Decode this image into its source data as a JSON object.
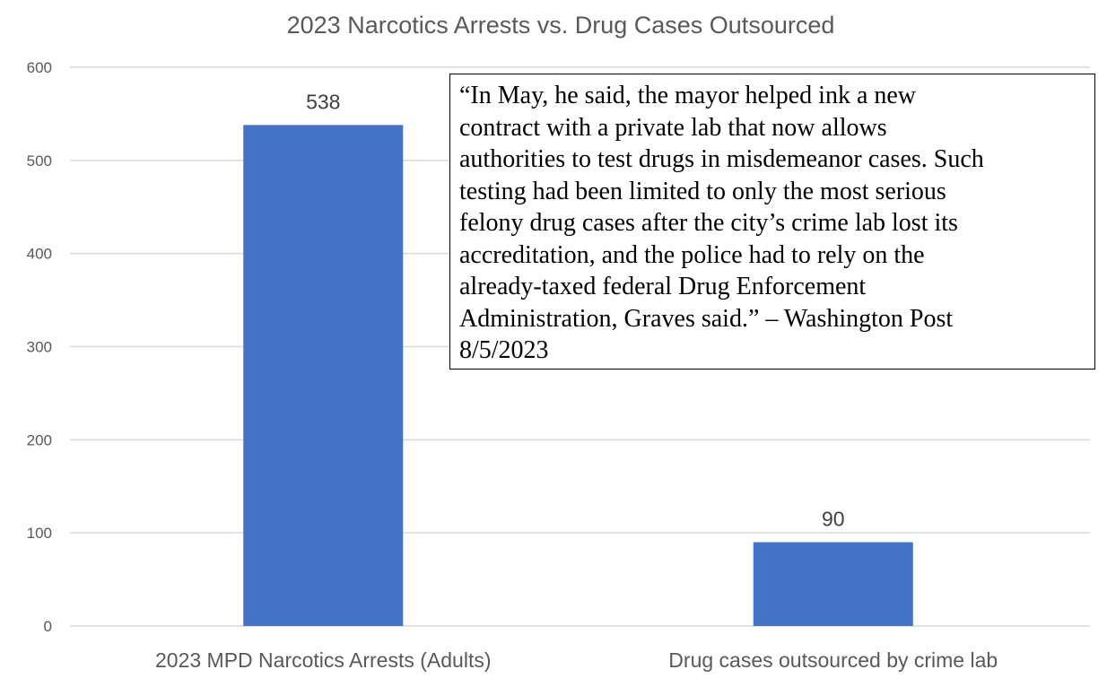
{
  "chart_data": {
    "type": "bar",
    "title": "2023 Narcotics Arrests vs. Drug Cases Outsourced",
    "categories": [
      "2023 MPD Narcotics Arrests (Adults)",
      "Drug cases outsourced by crime lab"
    ],
    "values": [
      538,
      90
    ],
    "data_labels": [
      "538",
      "90"
    ],
    "ylim": [
      0,
      600
    ],
    "yticks": [
      0,
      100,
      200,
      300,
      400,
      500,
      600
    ],
    "ytick_labels": [
      "0",
      "100",
      "200",
      "300",
      "400",
      "500",
      "600"
    ],
    "grid": true,
    "bar_color": "#4472C4",
    "annotation": {
      "lines": [
        "“In May, he said, the mayor helped ink a new",
        "contract with a private lab that now allows",
        "authorities to test drugs in misdemeanor cases. Such",
        "testing had been limited to only the most serious",
        "felony drug cases after the city’s crime lab lost its",
        "accreditation, and the police had to rely on the",
        "already-taxed federal Drug Enforcement",
        "Administration, Graves said.” – Washington Post",
        "8/5/2023"
      ]
    }
  }
}
